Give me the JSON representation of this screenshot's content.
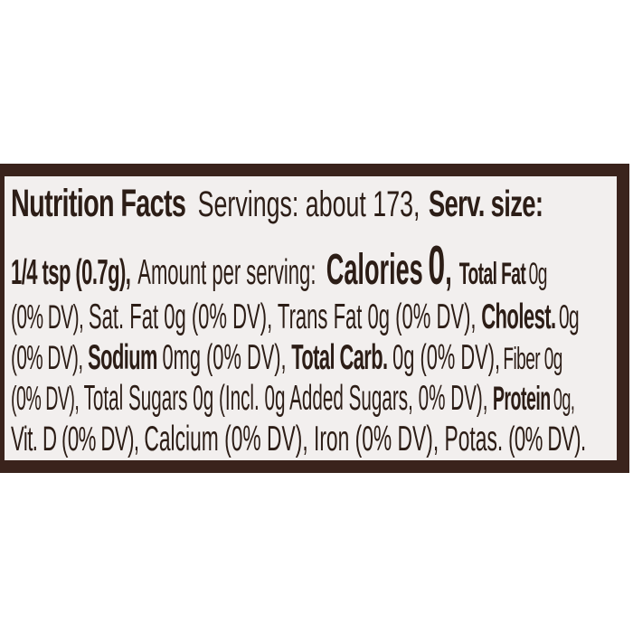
{
  "page": {
    "background": "#ffffff"
  },
  "label": {
    "border_color": "#3a231c",
    "background": "#f2efee",
    "text_color": "#2c1d16",
    "l1": {
      "brand": "Nutrition Facts",
      "servings": "Servings: about 173,",
      "serv_size": "Serv. size:"
    },
    "l2": {
      "serving_size": "1/4 tsp (0.7g),",
      "amount": "Amount per serving:",
      "calories_label": "Calories",
      "calories_value": "0",
      "comma": ",",
      "total_fat_label": "Total Fat",
      "total_fat_value": "0g"
    },
    "l3": {
      "dv1": "(0% DV),",
      "sat_trans": "Sat. Fat 0g (0% DV), Trans Fat 0g (0% DV),",
      "cholest_label": "Cholest.",
      "cholest_value": "0g"
    },
    "l4": {
      "dv1": "(0% DV),",
      "sodium_label": "Sodium",
      "sodium_value": "0mg (0% DV),",
      "carb_label": "Total Carb.",
      "carb_value": "0g (0% DV),",
      "fiber": "Fiber 0g"
    },
    "l5": {
      "dv1": "(0% DV),",
      "sugars": "Total Sugars 0g (Incl. 0g Added Sugars, 0% DV),",
      "protein_label": "Protein",
      "protein_value": "0g,"
    },
    "l6": {
      "vit_d": "Vit. D (0% DV),",
      "minerals": "Calcium (0% DV), Iron (0% DV), Potas.",
      "end": "(0% DV)."
    }
  }
}
